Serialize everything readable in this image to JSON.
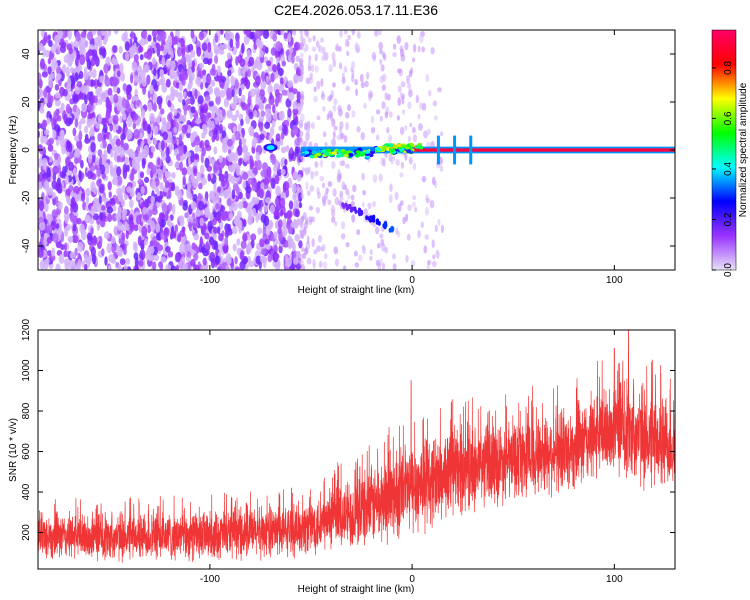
{
  "title": "C2E4.2026.053.17.11.E36",
  "colors": {
    "snr_series": "#ef3535",
    "frame": "#000000"
  },
  "chart_data": [
    {
      "type": "heatmap",
      "xlabel": "Height of straight line (km)",
      "ylabel": "Frequency (Hz)",
      "xlim": [
        -185,
        130
      ],
      "ylim": [
        -50,
        50
      ],
      "xticks": [
        -100,
        0,
        100
      ],
      "xtick_labels": [
        "-100",
        "0",
        "100"
      ],
      "yticks": [
        -40,
        -20,
        0,
        20,
        40
      ],
      "ytick_labels": [
        "-40",
        "-20",
        "0",
        "20",
        "40"
      ],
      "colorbar": {
        "label": "Normalized spectral amplitude",
        "range": [
          0,
          0.95
        ],
        "ticks": [
          0,
          0.2,
          0.4,
          0.6,
          0.8
        ],
        "tick_labels": [
          "0.0",
          "0.2",
          "0.4",
          "0.6",
          "0.8"
        ],
        "colormap": [
          "#e8e0f8",
          "#9933ff",
          "#0000ff",
          "#00ffff",
          "#00ff00",
          "#ffff00",
          "#ff0000",
          "#ff0066"
        ]
      },
      "features": [
        {
          "kind": "scattered_noise",
          "x_range": [
            -185,
            -55
          ],
          "y_range": [
            -50,
            50
          ],
          "amplitude": 0.15
        },
        {
          "kind": "sparse_noise",
          "x_range": [
            -55,
            15
          ],
          "y_range": [
            -50,
            50
          ],
          "amplitude": 0.06
        },
        {
          "kind": "carrier_line",
          "x_range": [
            -55,
            130
          ],
          "y": 0,
          "amplitude": 0.9
        },
        {
          "kind": "blob",
          "x": -70,
          "y": 1,
          "amplitude": 0.4
        },
        {
          "kind": "descending_streak",
          "x_range": [
            -35,
            -8
          ],
          "y_range": [
            -22,
            -34
          ],
          "amplitude": 0.3
        },
        {
          "kind": "vertical_spikes",
          "x_values": [
            13,
            21,
            29
          ],
          "y_range": [
            -6,
            6
          ],
          "amplitude": 0.35
        }
      ],
      "grid": false
    },
    {
      "type": "line",
      "xlabel": "Height of straight line (km)",
      "ylabel": "SNR (10 * v/v)",
      "xlim": [
        -185,
        130
      ],
      "ylim": [
        20,
        1200
      ],
      "xticks": [
        -100,
        0,
        100
      ],
      "xtick_labels": [
        "-100",
        "0",
        "100"
      ],
      "yticks": [
        200,
        400,
        600,
        800,
        1000,
        1200
      ],
      "ytick_labels": [
        "200",
        "400",
        "600",
        "800",
        "1000",
        "1200"
      ],
      "series": [
        {
          "color": "#ef3535",
          "trend_x": [
            -185,
            -150,
            -100,
            -60,
            -40,
            -20,
            0,
            20,
            50,
            80,
            100,
            110,
            120,
            130
          ],
          "trend_y": [
            185,
            175,
            185,
            210,
            260,
            330,
            420,
            500,
            560,
            620,
            720,
            690,
            640,
            640
          ],
          "spread": [
            110,
            110,
            115,
            120,
            150,
            190,
            220,
            210,
            190,
            200,
            220,
            230,
            230,
            220
          ],
          "peaks_x": [
            -0.5,
            107,
            100
          ],
          "peaks_y": [
            950,
            1200,
            1110
          ]
        }
      ],
      "grid": false
    }
  ]
}
